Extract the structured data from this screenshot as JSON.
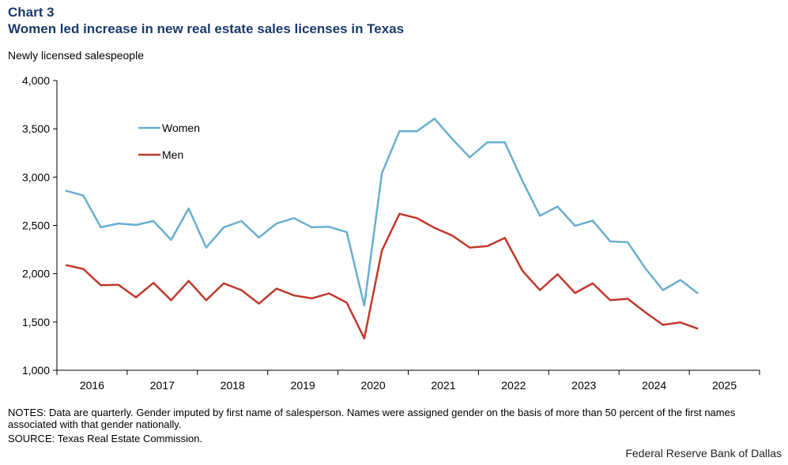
{
  "header": {
    "chart_number": "Chart 3",
    "title": "Women led increase in new real estate sales licenses in Texas",
    "ylabel": "Newly licensed salespeople"
  },
  "footer": {
    "notes": "NOTES: Data are quarterly. Gender imputed by first name of salesperson. Names were assigned gender on the basis of more than 50 percent of the first names associated with that gender nationally.",
    "source": "SOURCE: Texas Real Estate Commission.",
    "credit": "Federal Reserve Bank of Dallas"
  },
  "colors": {
    "women": "#6aaed0",
    "men": "#c0392b",
    "axis": "#000000"
  },
  "chart_data": {
    "type": "line",
    "title": "Women led increase in new real estate sales licenses in Texas",
    "xlabel": "",
    "ylabel": "Newly licensed salespeople",
    "ylim": [
      1000,
      4000
    ],
    "yticks": [
      1000,
      1500,
      2000,
      2500,
      3000,
      3500,
      4000
    ],
    "ytick_labels": [
      "1,000",
      "1,500",
      "2,000",
      "2,500",
      "3,000",
      "3,500",
      "4,000"
    ],
    "year_labels": [
      "2016",
      "2017",
      "2018",
      "2019",
      "2020",
      "2021",
      "2022",
      "2023",
      "2024",
      "2025"
    ],
    "x_range_quarters": [
      0,
      40
    ],
    "legend": "upper-left",
    "series": [
      {
        "name": "Women",
        "color": "#6aaed0",
        "values": [
          2860,
          2810,
          2480,
          2520,
          2505,
          2545,
          2350,
          2675,
          2270,
          2480,
          2545,
          2375,
          2520,
          2575,
          2480,
          2485,
          2430,
          1670,
          3040,
          3475,
          3475,
          3605,
          3395,
          3205,
          3360,
          3360,
          2960,
          2600,
          2695,
          2495,
          2550,
          2335,
          2325,
          2055,
          1830,
          1935,
          1795
        ]
      },
      {
        "name": "Men",
        "color": "#c0392b",
        "values": [
          2090,
          2050,
          1880,
          1885,
          1755,
          1905,
          1725,
          1925,
          1725,
          1900,
          1830,
          1690,
          1845,
          1775,
          1745,
          1795,
          1700,
          1330,
          2240,
          2620,
          2575,
          2475,
          2395,
          2270,
          2285,
          2370,
          2030,
          1830,
          1995,
          1800,
          1900,
          1725,
          1740,
          1600,
          1470,
          1495,
          1430
        ]
      }
    ]
  }
}
